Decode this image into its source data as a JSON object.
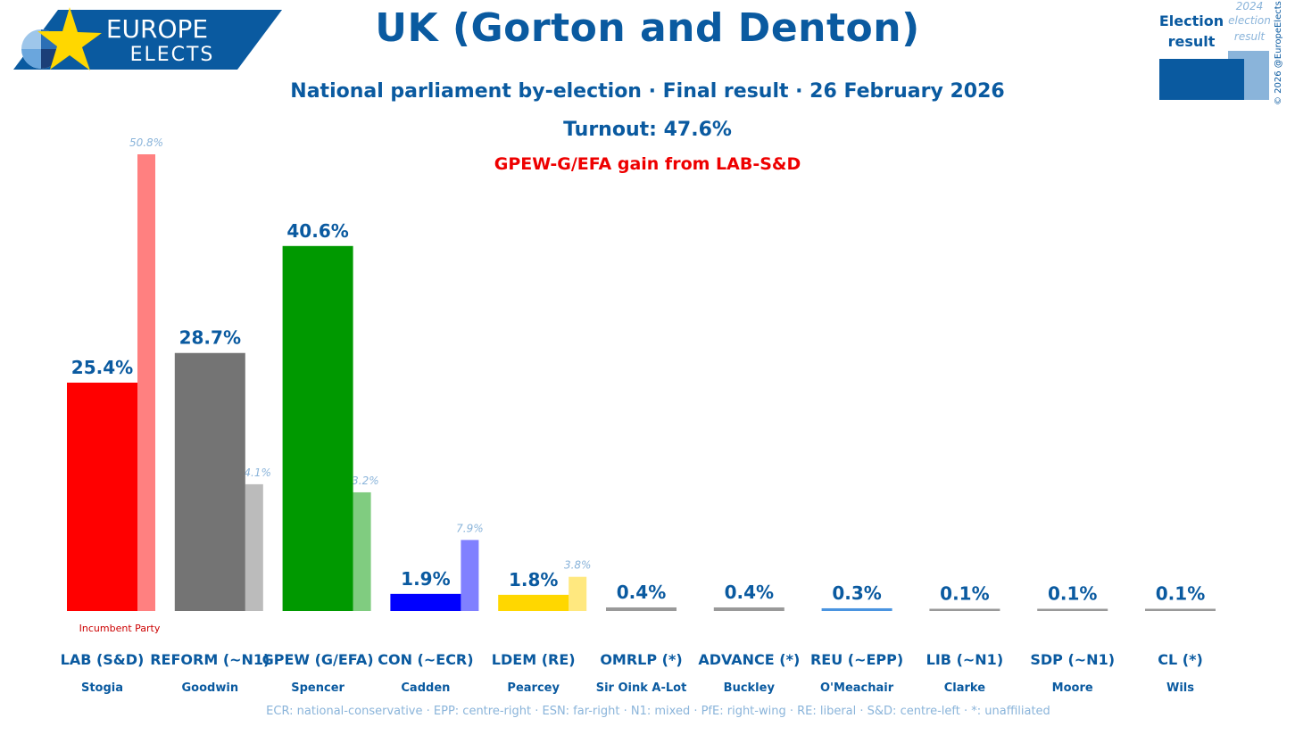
{
  "brand": {
    "line1": "EUROPE",
    "line2": "ELECTS"
  },
  "header": {
    "title": "UK (Gorton and Denton)",
    "subtitle": "National parliament by-election · Final result · 26 February 2026",
    "turnout": "Turnout: 47.6%",
    "gain_note": "GPEW-G/EFA gain from LAB-S&D"
  },
  "legend": {
    "current_label_1": "Election",
    "current_label_2": "result",
    "previous_label_1": "2024",
    "previous_label_2": "election",
    "previous_label_3": "result",
    "current_color": "#0a5aa0",
    "previous_color": "#8ab4da"
  },
  "copyright": "© 2026 @EuropeElects",
  "incumbent_label": "Incumbent Party",
  "footnote": "ECR: national-conservative · EPP: centre-right · ESN: far-right · N1: mixed · PfE: right-wing · RE: liberal · S&D: centre-left · *: unaffiliated",
  "chart_data": {
    "type": "bar",
    "value_suffix": "%",
    "ylim": [
      0,
      50.8
    ],
    "categories": [
      "LAB (S&D)",
      "REFORM (~N1)",
      "GPEW (G/EFA)",
      "CON (~ECR)",
      "LDEM (RE)",
      "OMRLP (*)",
      "ADVANCE (*)",
      "REU (~EPP)",
      "LIB (~N1)",
      "SDP (~N1)",
      "CL (*)"
    ],
    "candidates": [
      "Stogia",
      "Goodwin",
      "Spencer",
      "Cadden",
      "Pearcey",
      "Sir Oink A-Lot",
      "Buckley",
      "O'Meachair",
      "Clarke",
      "Moore",
      "Wils"
    ],
    "series": [
      {
        "values": [
          25.4,
          28.7,
          40.6,
          1.9,
          1.8,
          0.4,
          0.4,
          0.3,
          0.1,
          0.1,
          0.1
        ]
      },
      {
        "values": [
          50.8,
          14.1,
          13.2,
          7.9,
          3.8,
          null,
          null,
          null,
          null,
          null,
          null
        ]
      }
    ],
    "colors": [
      "#ff0000",
      "#747474",
      "#009900",
      "#0000ff",
      "#ffd700",
      "#999999",
      "#999999",
      "#4a94e0",
      "#999999",
      "#999999",
      "#999999"
    ],
    "previous_colors": [
      "#ff8080",
      "#bbbbbb",
      "#80cc80",
      "#8080ff",
      "#ffe87f",
      null,
      null,
      null,
      null,
      null,
      null
    ],
    "incumbent_index": 0
  }
}
